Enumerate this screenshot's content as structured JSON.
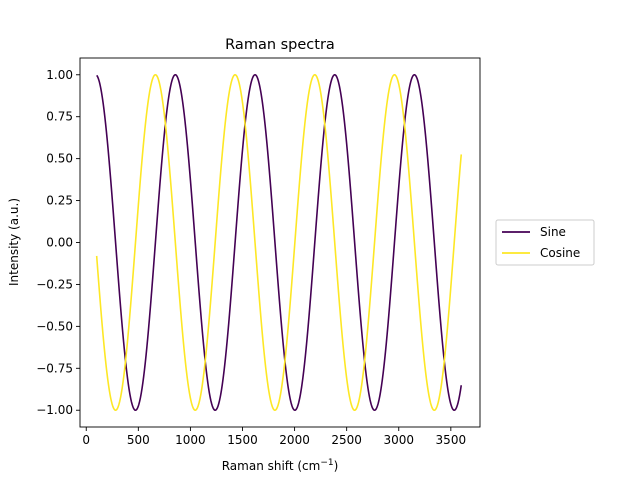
{
  "chart_data": {
    "type": "line",
    "title": "Raman spectra",
    "xlabel": "Raman shift (cm",
    "xlabel_sup": "−1",
    "xlabel_suffix": ")",
    "ylabel": "Intensity (a.u.)",
    "xlim": [
      -60,
      3780
    ],
    "ylim": [
      -1.1,
      1.1
    ],
    "grid": false,
    "legend_position": "outside-right",
    "x_ticks": [
      0,
      500,
      1000,
      1500,
      2000,
      2500,
      3000,
      3500
    ],
    "x_tick_labels": [
      "0",
      "500",
      "1000",
      "1500",
      "2000",
      "2500",
      "3000",
      "3500"
    ],
    "y_ticks": [
      -1.0,
      -0.75,
      -0.5,
      -0.25,
      0.0,
      0.25,
      0.5,
      0.75,
      1.0
    ],
    "y_tick_labels": [
      "−1.00",
      "−0.75",
      "−0.50",
      "−0.25",
      "0.00",
      "0.25",
      "0.50",
      "0.75",
      "1.00"
    ],
    "x_range": [
      100,
      3600
    ],
    "series": [
      {
        "name": "Sine",
        "function": "sin",
        "period": 765,
        "phase": 0.83,
        "color": "#440154"
      },
      {
        "name": "Cosine",
        "function": "cos",
        "period": 765,
        "phase": 0.83,
        "color": "#fde725"
      }
    ]
  }
}
